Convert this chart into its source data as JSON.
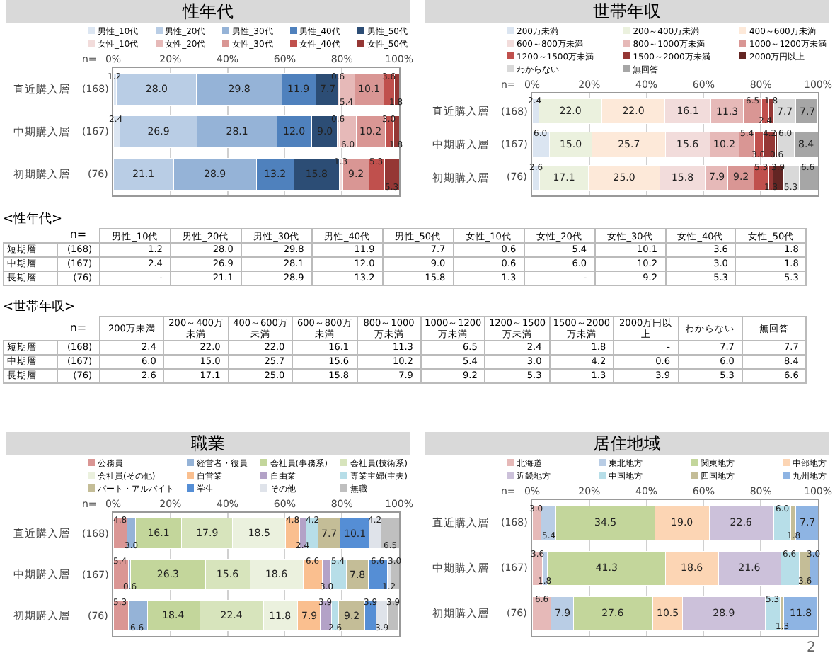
{
  "chart_data": [
    {
      "type": "bar",
      "orientation": "horizontal",
      "stacked": true,
      "title": "性年代",
      "categories": [
        "直近購入層",
        "中期購入層",
        "初期購入層"
      ],
      "annotations": [
        "n=",
        "(168)",
        "(167)",
        "(76)"
      ],
      "xlim": [
        0,
        100
      ],
      "xticks": [
        {
          "value": 0,
          "label": "0%"
        },
        {
          "value": 20,
          "label": "20%"
        },
        {
          "value": 40,
          "label": "40%"
        },
        {
          "value": 60,
          "label": "60%"
        },
        {
          "value": 80,
          "label": "80%"
        },
        {
          "value": 100,
          "label": "100%"
        }
      ],
      "grid": "x",
      "legend": "top",
      "series": [
        {
          "name": "男性_10代",
          "color": "#dce6f2",
          "values": [
            1.2,
            2.4,
            null
          ],
          "value_labels": [
            "1.2",
            "2.4",
            null
          ]
        },
        {
          "name": "男性_20代",
          "color": "#b9cde5",
          "values": [
            28.0,
            26.9,
            21.1
          ],
          "value_labels": [
            "28.0",
            "26.9",
            "21.1"
          ]
        },
        {
          "name": "男性_30代",
          "color": "#95b3d7",
          "values": [
            29.8,
            28.1,
            28.9
          ],
          "value_labels": [
            "29.8",
            "28.1",
            "28.9"
          ]
        },
        {
          "name": "男性_40代",
          "color": "#4f81bd",
          "values": [
            11.9,
            12.0,
            13.2
          ],
          "value_labels": [
            "11.9",
            "12.0",
            "13.2"
          ]
        },
        {
          "name": "男性_50代",
          "color": "#2c4d75",
          "values": [
            7.7,
            9.0,
            15.8
          ],
          "value_labels": [
            "7.7",
            "9.0",
            "15.8"
          ]
        },
        {
          "name": "女性_10代",
          "color": "#f2dcdb",
          "values": [
            0.6,
            0.6,
            1.3
          ],
          "value_labels": [
            "0.6",
            "0.6",
            "1.3"
          ]
        },
        {
          "name": "女性_20代",
          "color": "#e6b9b8",
          "values": [
            5.4,
            6.0,
            null
          ],
          "value_labels": [
            "5.4",
            "6.0",
            null
          ]
        },
        {
          "name": "女性_30代",
          "color": "#d99694",
          "values": [
            10.1,
            10.2,
            9.2
          ],
          "value_labels": [
            "10.1",
            "10.2",
            "9.2"
          ]
        },
        {
          "name": "女性_40代",
          "color": "#c0504d",
          "values": [
            3.6,
            3.0,
            5.3
          ],
          "value_labels": [
            "3.6",
            "3.0",
            "5.3"
          ]
        },
        {
          "name": "女性_50代",
          "color": "#953735",
          "values": [
            1.8,
            1.8,
            5.3
          ],
          "value_labels": [
            "1.8",
            "1.8",
            "5.3"
          ]
        }
      ]
    },
    {
      "type": "bar",
      "orientation": "horizontal",
      "stacked": true,
      "title": "世帯年収",
      "categories": [
        "直近購入層",
        "中期購入層",
        "初期購入層"
      ],
      "annotations": [
        "n=",
        "(168)",
        "(167)",
        "(76)"
      ],
      "xlim": [
        0,
        100
      ],
      "xticks": [
        {
          "value": 0,
          "label": "0%"
        },
        {
          "value": 20,
          "label": "20%"
        },
        {
          "value": 40,
          "label": "40%"
        },
        {
          "value": 60,
          "label": "60%"
        },
        {
          "value": 80,
          "label": "80%"
        },
        {
          "value": 100,
          "label": "100%"
        }
      ],
      "grid": "x",
      "legend": "top",
      "series": [
        {
          "name": "200万未満",
          "color": "#dbe5f1",
          "values": [
            2.4,
            6.0,
            2.6
          ],
          "value_labels": [
            "2.4",
            "6.0",
            "2.6"
          ]
        },
        {
          "name": "200～400万未満",
          "color": "#ebf1de",
          "values": [
            22.0,
            15.0,
            17.1
          ],
          "value_labels": [
            "22.0",
            "15.0",
            "17.1"
          ]
        },
        {
          "name": "400～600万未満",
          "color": "#fde9d9",
          "values": [
            22.0,
            25.7,
            25.0
          ],
          "value_labels": [
            "22.0",
            "25.7",
            "25.0"
          ]
        },
        {
          "name": "600～800万未満",
          "color": "#f2dcdb",
          "values": [
            16.1,
            15.6,
            15.8
          ],
          "value_labels": [
            "16.1",
            "15.6",
            "15.8"
          ]
        },
        {
          "name": "800～1000万未満",
          "color": "#e6b9b8",
          "values": [
            11.3,
            10.2,
            7.9
          ],
          "value_labels": [
            "11.3",
            "10.2",
            "7.9"
          ]
        },
        {
          "name": "1000～1200万未満",
          "color": "#d99694",
          "values": [
            6.5,
            5.4,
            9.2
          ],
          "value_labels": [
            "6.5",
            "5.4",
            "9.2"
          ]
        },
        {
          "name": "1200～1500万未満",
          "color": "#c0504d",
          "values": [
            2.4,
            3.0,
            5.3
          ],
          "value_labels": [
            "2.4",
            "3.0",
            "5.3"
          ]
        },
        {
          "name": "1500～2000万未満",
          "color": "#953735",
          "values": [
            1.8,
            4.2,
            1.3
          ],
          "value_labels": [
            "1.8",
            "4.2",
            "1.3"
          ]
        },
        {
          "name": "2000万円以上",
          "color": "#632523",
          "values": [
            null,
            0.6,
            3.9
          ],
          "value_labels": [
            null,
            "0.6",
            "3.9"
          ]
        },
        {
          "name": "わからない",
          "color": "#d9d9d9",
          "values": [
            7.7,
            6.0,
            5.3
          ],
          "value_labels": [
            "7.7",
            "6.0",
            "5.3"
          ]
        },
        {
          "name": "無回答",
          "color": "#a6a6a6",
          "values": [
            7.7,
            8.4,
            6.6
          ],
          "value_labels": [
            "7.7",
            "8.4",
            "6.6"
          ]
        }
      ]
    },
    {
      "type": "heatmap",
      "title": "<性年代>",
      "annotations": [
        "n="
      ],
      "categories": [
        "男性_10代",
        "男性_20代",
        "男性_30代",
        "男性_40代",
        "男性_50代",
        "女性_10代",
        "女性_20代",
        "女性_30代",
        "女性_40代",
        "女性_50代"
      ],
      "y_categories": [
        "短期層",
        "中期層",
        "長期層"
      ],
      "y2_categories": [
        "(168)",
        "(167)",
        "(76)"
      ],
      "cells": [
        [
          1.2,
          28.0,
          29.8,
          11.9,
          7.7,
          0.6,
          5.4,
          10.1,
          3.6,
          1.8
        ],
        [
          2.4,
          26.9,
          28.1,
          12.0,
          9.0,
          0.6,
          6.0,
          10.2,
          3.0,
          1.8
        ],
        [
          null,
          21.1,
          28.9,
          13.2,
          15.8,
          1.3,
          null,
          9.2,
          5.3,
          5.3
        ]
      ],
      "cell_labels": [
        [
          "1.2",
          "28.0",
          "29.8",
          "11.9",
          "7.7",
          "0.6",
          "5.4",
          "10.1",
          "3.6",
          "1.8"
        ],
        [
          "2.4",
          "26.9",
          "28.1",
          "12.0",
          "9.0",
          "0.6",
          "6.0",
          "10.2",
          "3.0",
          "1.8"
        ],
        [
          "-",
          "21.1",
          "28.9",
          "13.2",
          "15.8",
          "1.3",
          "-",
          "9.2",
          "5.3",
          "5.3"
        ]
      ]
    },
    {
      "type": "heatmap",
      "title": "<世帯年収>",
      "annotations": [
        "n="
      ],
      "categories": [
        "200万未満",
        "200～400万未満",
        "400～600万未満",
        "600～800万未満",
        "800～1000万未満",
        "1000～1200万未満",
        "1200～1500万未満",
        "1500～2000万未満",
        "2000万円以上",
        "わからない",
        "無回答"
      ],
      "y_categories": [
        "短期層",
        "中期層",
        "長期層"
      ],
      "y2_categories": [
        "(168)",
        "(167)",
        "(76)"
      ],
      "cells": [
        [
          2.4,
          22.0,
          22.0,
          16.1,
          11.3,
          6.5,
          2.4,
          1.8,
          null,
          7.7,
          7.7
        ],
        [
          6.0,
          15.0,
          25.7,
          15.6,
          10.2,
          5.4,
          3.0,
          4.2,
          0.6,
          6.0,
          8.4
        ],
        [
          2.6,
          17.1,
          25.0,
          15.8,
          7.9,
          9.2,
          5.3,
          1.3,
          3.9,
          5.3,
          6.6
        ]
      ],
      "cell_labels": [
        [
          "2.4",
          "22.0",
          "22.0",
          "16.1",
          "11.3",
          "6.5",
          "2.4",
          "1.8",
          "-",
          "7.7",
          "7.7"
        ],
        [
          "6.0",
          "15.0",
          "25.7",
          "15.6",
          "10.2",
          "5.4",
          "3.0",
          "4.2",
          "0.6",
          "6.0",
          "8.4"
        ],
        [
          "2.6",
          "17.1",
          "25.0",
          "15.8",
          "7.9",
          "9.2",
          "5.3",
          "1.3",
          "3.9",
          "5.3",
          "6.6"
        ]
      ]
    },
    {
      "type": "bar",
      "orientation": "horizontal",
      "stacked": true,
      "title": "職業",
      "categories": [
        "直近購入層",
        "中期購入層",
        "初期購入層"
      ],
      "annotations": [
        "n=",
        "(168)",
        "(167)",
        "(76)"
      ],
      "xlim": [
        0,
        100
      ],
      "xticks": [
        {
          "value": 0,
          "label": "0%"
        },
        {
          "value": 20,
          "label": "20%"
        },
        {
          "value": 40,
          "label": "40%"
        },
        {
          "value": 60,
          "label": "60%"
        },
        {
          "value": 80,
          "label": "80%"
        },
        {
          "value": 100,
          "label": "100%"
        }
      ],
      "grid": "x",
      "legend": "top",
      "series": [
        {
          "name": "公務員",
          "color": "#da9694",
          "values": [
            4.8,
            5.4,
            5.3
          ],
          "value_labels": [
            "4.8",
            "5.4",
            "5.3"
          ]
        },
        {
          "name": "経営者・役員",
          "color": "#95b3d7",
          "values": [
            3.0,
            0.6,
            6.6
          ],
          "value_labels": [
            "3.0",
            "0.6",
            "6.6"
          ]
        },
        {
          "name": "会社員(事務系)",
          "color": "#c3d69b",
          "values": [
            16.1,
            26.3,
            18.4
          ],
          "value_labels": [
            "16.1",
            "26.3",
            "18.4"
          ]
        },
        {
          "name": "会社員(技術系)",
          "color": "#d7e4bc",
          "values": [
            17.9,
            15.6,
            22.4
          ],
          "value_labels": [
            "17.9",
            "15.6",
            "22.4"
          ]
        },
        {
          "name": "会社員(その他)",
          "color": "#ebf1de",
          "values": [
            18.5,
            18.6,
            11.8
          ],
          "value_labels": [
            "18.5",
            "18.6",
            "11.8"
          ]
        },
        {
          "name": "自営業",
          "color": "#fabf8f",
          "values": [
            4.8,
            6.6,
            7.9
          ],
          "value_labels": [
            "4.8",
            "6.6",
            "7.9"
          ]
        },
        {
          "name": "自由業",
          "color": "#b3a2c7",
          "values": [
            2.4,
            3.0,
            3.9
          ],
          "value_labels": [
            "2.4",
            "3.0",
            "3.9"
          ]
        },
        {
          "name": "専業主婦(主夫)",
          "color": "#b7dee8",
          "values": [
            4.2,
            5.4,
            2.6
          ],
          "value_labels": [
            "4.2",
            "5.4",
            "2.6"
          ]
        },
        {
          "name": "パート・アルバイト",
          "color": "#c4bd97",
          "values": [
            7.7,
            7.8,
            9.2
          ],
          "value_labels": [
            "7.7",
            "7.8",
            "9.2"
          ]
        },
        {
          "name": "学生",
          "color": "#558ed5",
          "values": [
            10.1,
            6.6,
            3.9
          ],
          "value_labels": [
            "10.1",
            "6.6",
            "3.9"
          ]
        },
        {
          "name": "その他",
          "color": "#dfe3ea",
          "values": [
            4.2,
            1.2,
            3.9
          ],
          "value_labels": [
            "4.2",
            "1.2",
            "3.9"
          ]
        },
        {
          "name": "無職",
          "color": "#bfbfbf",
          "values": [
            6.5,
            3.0,
            3.9
          ],
          "value_labels": [
            "6.5",
            "3.0",
            "3.9"
          ]
        }
      ]
    },
    {
      "type": "bar",
      "orientation": "horizontal",
      "stacked": true,
      "title": "居住地域",
      "categories": [
        "直近購入層",
        "中期購入層",
        "初期購入層"
      ],
      "annotations": [
        "n=",
        "(168)",
        "(167)",
        "(76)",
        "2"
      ],
      "xlim": [
        0,
        100
      ],
      "xticks": [
        {
          "value": 0,
          "label": "0%"
        },
        {
          "value": 20,
          "label": "20%"
        },
        {
          "value": 40,
          "label": "40%"
        },
        {
          "value": 60,
          "label": "60%"
        },
        {
          "value": 80,
          "label": "80%"
        },
        {
          "value": 100,
          "label": "100%"
        }
      ],
      "grid": "x",
      "legend": "top",
      "series": [
        {
          "name": "北海道",
          "color": "#e6b9b8",
          "values": [
            3.0,
            3.6,
            6.6
          ],
          "value_labels": [
            "3.0",
            "3.6",
            "6.6"
          ]
        },
        {
          "name": "東北地方",
          "color": "#b9cde5",
          "values": [
            5.4,
            1.8,
            7.9
          ],
          "value_labels": [
            "5.4",
            "1.8",
            "7.9"
          ]
        },
        {
          "name": "関東地方",
          "color": "#c3d69b",
          "values": [
            34.5,
            41.3,
            27.6
          ],
          "value_labels": [
            "34.5",
            "41.3",
            "27.6"
          ]
        },
        {
          "name": "中部地方",
          "color": "#fcd5b4",
          "values": [
            19.0,
            18.6,
            10.5
          ],
          "value_labels": [
            "19.0",
            "18.6",
            "10.5"
          ]
        },
        {
          "name": "近畿地方",
          "color": "#ccc1da",
          "values": [
            22.6,
            21.6,
            28.9
          ],
          "value_labels": [
            "22.6",
            "21.6",
            "28.9"
          ]
        },
        {
          "name": "中国地方",
          "color": "#b7dee8",
          "values": [
            6.0,
            6.6,
            5.3
          ],
          "value_labels": [
            "6.0",
            "6.6",
            "5.3"
          ]
        },
        {
          "name": "四国地方",
          "color": "#c4bd97",
          "values": [
            1.8,
            3.6,
            1.3
          ],
          "value_labels": [
            "1.8",
            "3.6",
            "1.3"
          ]
        },
        {
          "name": "九州地方",
          "color": "#8eb4e3",
          "values": [
            7.7,
            3.0,
            11.8
          ],
          "value_labels": [
            "7.7",
            "3.0",
            "11.8"
          ]
        }
      ]
    }
  ]
}
